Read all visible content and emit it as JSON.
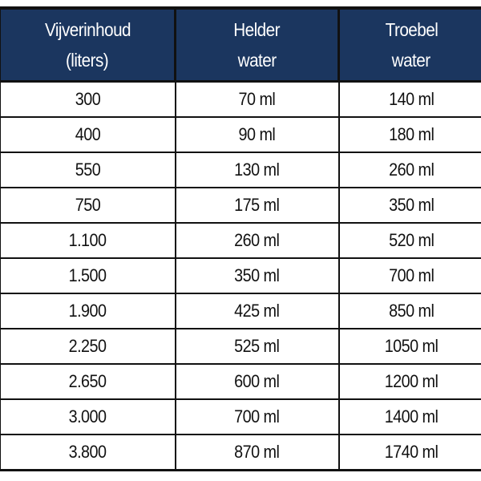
{
  "table": {
    "headers": [
      [
        "Vijverinhoud",
        "(liters)"
      ],
      [
        "Helder",
        "water"
      ],
      [
        "Troebel",
        "water"
      ]
    ],
    "rows": [
      [
        "300",
        "70 ml",
        "140 ml"
      ],
      [
        "400",
        "90 ml",
        "180 ml"
      ],
      [
        "550",
        "130 ml",
        "260 ml"
      ],
      [
        "750",
        "175 ml",
        "350 ml"
      ],
      [
        "1.100",
        "260 ml",
        "520 ml"
      ],
      [
        "1.500",
        "350 ml",
        "700 ml"
      ],
      [
        "1.900",
        "425 ml",
        "850 ml"
      ],
      [
        "2.250",
        "525 ml",
        "1050 ml"
      ],
      [
        "2.650",
        "600 ml",
        "1200 ml"
      ],
      [
        "3.000",
        "700 ml",
        "1400 ml"
      ],
      [
        "3.800",
        "870 ml",
        "1740 ml"
      ]
    ],
    "header_color": "#1b365f"
  }
}
